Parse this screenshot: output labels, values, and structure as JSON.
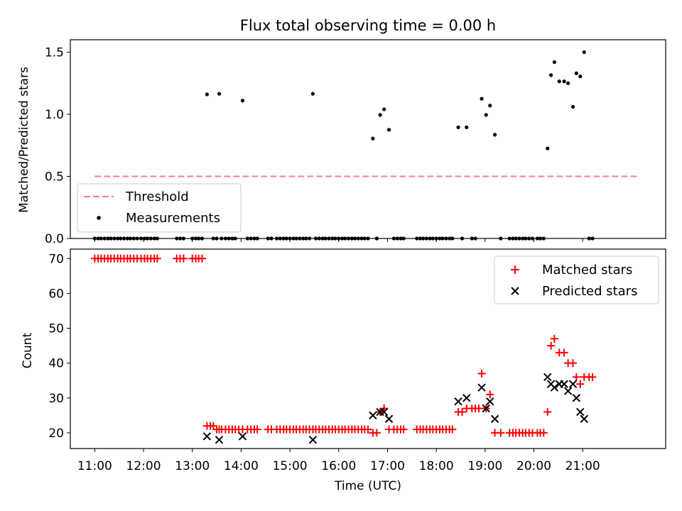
{
  "chart_data": [
    {
      "type": "scatter",
      "title": "Flux total observing time = 0.00 h",
      "xlabel": "",
      "ylabel": "Matched/Predicted stars",
      "xlim": [
        10.5,
        22.7
      ],
      "ylim": [
        0,
        1.6
      ],
      "yticks": [
        0.0,
        0.5,
        1.0,
        1.5
      ],
      "ytick_labels": [
        "0.0",
        "0.5",
        "1.0",
        "1.5"
      ],
      "legend_position": "lower-left",
      "threshold": {
        "name": "Threshold",
        "value": 0.5,
        "x_start": 11.0,
        "x_end": 22.15,
        "color": "#ff7f7f"
      },
      "measurements": {
        "name": "Measurements",
        "color": "#000000",
        "x": [
          13.3,
          13.55,
          14.03,
          15.47,
          16.7,
          16.85,
          16.93,
          17.03,
          18.45,
          18.62,
          18.93,
          19.02,
          19.1,
          19.2,
          20.28,
          20.35,
          20.42,
          20.52,
          20.62,
          20.7,
          20.8,
          20.87,
          20.95,
          21.03
        ],
        "y": [
          1.16,
          1.165,
          1.11,
          1.165,
          0.805,
          0.995,
          1.04,
          0.875,
          0.895,
          0.895,
          1.125,
          0.995,
          1.07,
          0.835,
          0.725,
          1.315,
          1.42,
          1.265,
          1.265,
          1.25,
          1.06,
          1.33,
          1.305,
          1.5
        ],
        "zero_x": [
          11.0,
          11.07,
          11.13,
          11.2,
          11.27,
          11.33,
          11.4,
          11.47,
          11.53,
          11.6,
          11.67,
          11.73,
          11.8,
          11.87,
          11.95,
          12.02,
          12.08,
          12.15,
          12.22,
          12.28,
          12.68,
          12.75,
          12.82,
          13.0,
          13.07,
          13.13,
          13.2,
          13.43,
          13.5,
          13.6,
          13.68,
          13.75,
          13.82,
          13.88,
          14.13,
          14.2,
          14.27,
          14.33,
          14.55,
          14.62,
          14.73,
          14.8,
          14.87,
          14.93,
          15.0,
          15.07,
          15.13,
          15.2,
          15.27,
          15.33,
          15.4,
          15.53,
          15.6,
          15.67,
          15.73,
          15.8,
          15.87,
          15.93,
          16.0,
          16.07,
          16.13,
          16.2,
          16.27,
          16.33,
          16.4,
          16.47,
          16.53,
          16.6,
          16.78,
          17.13,
          17.2,
          17.27,
          17.33,
          17.6,
          17.67,
          17.73,
          17.8,
          17.87,
          17.93,
          18.0,
          18.07,
          18.13,
          18.2,
          18.27,
          18.33,
          18.53,
          18.73,
          18.8,
          19.32,
          19.5,
          19.57,
          19.63,
          19.7,
          19.77,
          19.83,
          19.9,
          19.97,
          20.07,
          20.13,
          20.2,
          21.13,
          21.2
        ],
        "zero_y": 0.0
      }
    },
    {
      "type": "scatter",
      "title": "",
      "xlabel": "Time (UTC)",
      "ylabel": "Count",
      "xlim": [
        10.5,
        22.7
      ],
      "ylim": [
        15.5,
        72.7
      ],
      "xticks": [
        11,
        12,
        13,
        14,
        15,
        16,
        17,
        18,
        19,
        20,
        21
      ],
      "xtick_labels": [
        "11:00",
        "12:00",
        "13:00",
        "14:00",
        "15:00",
        "16:00",
        "17:00",
        "18:00",
        "19:00",
        "20:00",
        "21:00"
      ],
      "yticks": [
        20,
        30,
        40,
        50,
        60,
        70
      ],
      "ytick_labels": [
        "20",
        "30",
        "40",
        "50",
        "60",
        "70"
      ],
      "legend_position": "upper-right",
      "series": [
        {
          "name": "Matched stars",
          "marker": "plus",
          "color": "#ff0000",
          "x": [
            11.0,
            11.07,
            11.13,
            11.2,
            11.27,
            11.33,
            11.4,
            11.47,
            11.53,
            11.6,
            11.67,
            11.73,
            11.8,
            11.87,
            11.95,
            12.02,
            12.08,
            12.15,
            12.22,
            12.28,
            12.68,
            12.75,
            12.82,
            13.0,
            13.07,
            13.13,
            13.2,
            13.3,
            13.37,
            13.43,
            13.5,
            13.55,
            13.6,
            13.68,
            13.75,
            13.82,
            13.88,
            13.95,
            14.03,
            14.13,
            14.2,
            14.27,
            14.33,
            14.55,
            14.62,
            14.73,
            14.8,
            14.87,
            14.93,
            15.0,
            15.07,
            15.13,
            15.2,
            15.27,
            15.33,
            15.4,
            15.47,
            15.53,
            15.6,
            15.67,
            15.73,
            15.8,
            15.87,
            15.93,
            16.0,
            16.07,
            16.13,
            16.2,
            16.27,
            16.33,
            16.4,
            16.47,
            16.53,
            16.6,
            16.7,
            16.78,
            16.85,
            16.93,
            17.03,
            17.13,
            17.2,
            17.27,
            17.33,
            17.6,
            17.67,
            17.73,
            17.8,
            17.87,
            17.93,
            18.0,
            18.07,
            18.13,
            18.2,
            18.27,
            18.33,
            18.45,
            18.53,
            18.62,
            18.73,
            18.8,
            18.87,
            18.93,
            19.02,
            19.1,
            19.2,
            19.32,
            19.5,
            19.57,
            19.63,
            19.7,
            19.77,
            19.83,
            19.9,
            19.97,
            20.07,
            20.13,
            20.2,
            20.28,
            20.35,
            20.42,
            20.52,
            20.62,
            20.7,
            20.8,
            20.87,
            20.95,
            21.03,
            21.13,
            21.2
          ],
          "y": [
            70,
            70,
            70,
            70,
            70,
            70,
            70,
            70,
            70,
            70,
            70,
            70,
            70,
            70,
            70,
            70,
            70,
            70,
            70,
            70,
            70,
            70,
            70,
            70,
            70,
            70,
            70,
            22,
            22,
            22,
            21,
            21,
            21,
            21,
            21,
            21,
            21,
            21,
            21,
            21,
            21,
            21,
            21,
            21,
            21,
            21,
            21,
            21,
            21,
            21,
            21,
            21,
            21,
            21,
            21,
            21,
            21,
            21,
            21,
            21,
            21,
            21,
            21,
            21,
            21,
            21,
            21,
            21,
            21,
            21,
            21,
            21,
            21,
            21,
            20,
            20,
            26,
            27,
            21,
            21,
            21,
            21,
            21,
            21,
            21,
            21,
            21,
            21,
            21,
            21,
            21,
            21,
            21,
            21,
            21,
            26,
            26,
            27,
            27,
            27,
            27,
            37,
            27,
            31,
            20,
            20,
            20,
            20,
            20,
            20,
            20,
            20,
            20,
            20,
            20,
            20,
            20,
            26,
            45,
            47,
            43,
            43,
            40,
            40,
            36,
            34,
            36,
            36,
            36
          ]
        },
        {
          "name": "Predicted stars",
          "marker": "x",
          "color": "#000000",
          "x": [
            13.3,
            13.55,
            14.03,
            15.47,
            16.7,
            16.85,
            16.93,
            17.03,
            18.45,
            18.62,
            18.93,
            19.02,
            19.1,
            19.2,
            20.28,
            20.35,
            20.42,
            20.52,
            20.62,
            20.7,
            20.8,
            20.87,
            20.95,
            21.03
          ],
          "y": [
            19,
            18,
            19,
            18,
            25,
            26,
            26,
            24,
            29,
            30,
            33,
            27,
            29,
            24,
            36,
            34,
            33,
            34,
            34,
            32,
            34,
            30,
            26,
            24
          ]
        }
      ]
    }
  ]
}
